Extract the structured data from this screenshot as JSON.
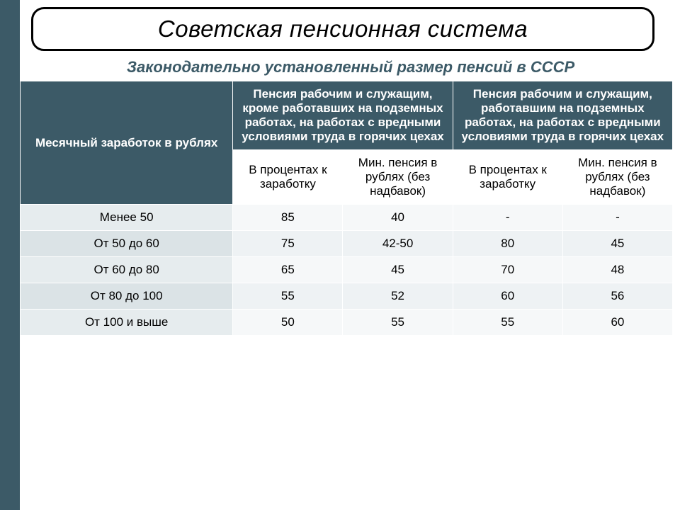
{
  "title": "Советская пенсионная система",
  "subtitle": "Законодательно установленный размер пенсий в СССР",
  "colors": {
    "accent": "#3c5a67",
    "header_bg": "#3c5a67",
    "header_text": "#ffffff",
    "rowlabel_bg_even": "#e6ecee",
    "rowlabel_bg_odd": "#dbe3e6",
    "cell_bg_even": "#f6f8f9",
    "cell_bg_odd": "#eef2f4"
  },
  "table": {
    "col_salary_header": "Месячный заработок в рублях",
    "group1_header": "Пенсия рабочим и служащим, кроме работавших на подземных работах, на работах с вредными условиями труда в горячих цехах",
    "group2_header": "Пенсия рабочим и служащим, работавшим на подземных работах, на работах с вредными условиями труда в горячих цехах",
    "sub_percent": "В процентах к заработку",
    "sub_min": "Мин. пенсия в рублях (без надбавок)",
    "rows": [
      {
        "label": "Менее 50",
        "g1_pct": "85",
        "g1_min": "40",
        "g2_pct": "-",
        "g2_min": "-"
      },
      {
        "label": "От 50 до 60",
        "g1_pct": "75",
        "g1_min": "42-50",
        "g2_pct": "80",
        "g2_min": "45"
      },
      {
        "label": "От 60 до 80",
        "g1_pct": "65",
        "g1_min": "45",
        "g2_pct": "70",
        "g2_min": "48"
      },
      {
        "label": "От 80 до 100",
        "g1_pct": "55",
        "g1_min": "52",
        "g2_pct": "60",
        "g2_min": "56"
      },
      {
        "label": "От 100 и выше",
        "g1_pct": "50",
        "g1_min": "55",
        "g2_pct": "55",
        "g2_min": "60"
      }
    ]
  }
}
